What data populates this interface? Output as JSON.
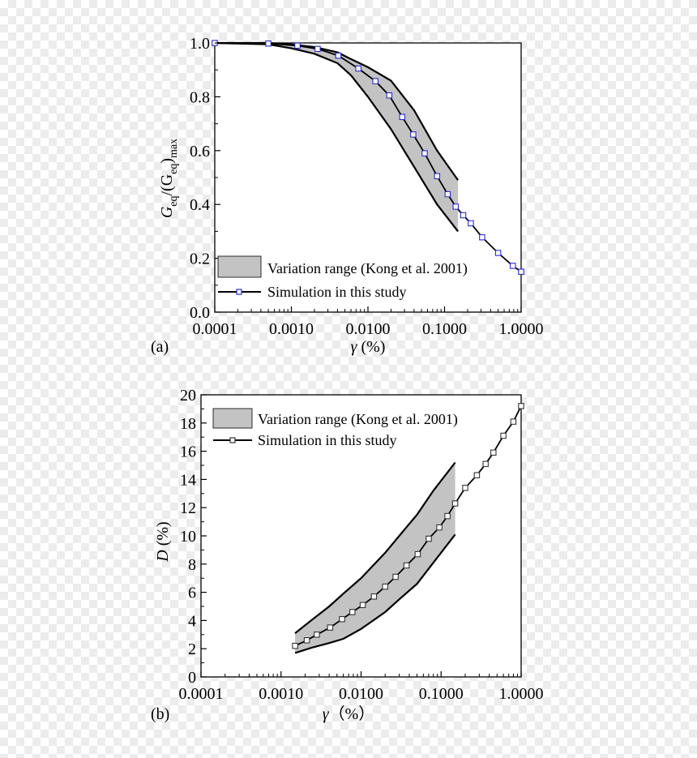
{
  "chart_data": [
    {
      "type": "line",
      "panel_label": "(a)",
      "xscale": "log",
      "xlim": [
        0.0001,
        1.0
      ],
      "ylim": [
        0.0,
        1.0
      ],
      "xticks": [
        "0.0001",
        "0.0010",
        "0.0100",
        "0.1000",
        "1.0000"
      ],
      "yticks": [
        "0.0",
        "0.2",
        "0.4",
        "0.6",
        "0.8",
        "1.0"
      ],
      "xlabel": {
        "symbol": "γ",
        "unit": " (%)"
      },
      "ylabel": {
        "parts": [
          "G",
          "eq",
          "/(G",
          "eq",
          ")",
          "max"
        ]
      },
      "legend_position": "bottom-left",
      "band": {
        "name": "Variation range (Kong et al. 2001)",
        "x": [
          0.0001,
          0.0005,
          0.001,
          0.002,
          0.004,
          0.006,
          0.01,
          0.02,
          0.04,
          0.08,
          0.15
        ],
        "upper": [
          1.0,
          1.0,
          0.995,
          0.985,
          0.965,
          0.94,
          0.91,
          0.86,
          0.75,
          0.6,
          0.49
        ],
        "lower": [
          1.0,
          0.995,
          0.98,
          0.96,
          0.925,
          0.88,
          0.8,
          0.68,
          0.54,
          0.4,
          0.3
        ]
      },
      "series": [
        {
          "name": "Simulation in this study",
          "x": [
            0.0001,
            0.0005,
            0.0012,
            0.0022,
            0.0041,
            0.0075,
            0.0125,
            0.019,
            0.028,
            0.039,
            0.055,
            0.08,
            0.11,
            0.14,
            0.175,
            0.22,
            0.31,
            0.5,
            0.78,
            1.0
          ],
          "y": [
            1.0,
            0.998,
            0.99,
            0.978,
            0.953,
            0.905,
            0.858,
            0.805,
            0.725,
            0.66,
            0.59,
            0.505,
            0.438,
            0.392,
            0.36,
            0.33,
            0.278,
            0.22,
            0.172,
            0.15
          ]
        }
      ]
    },
    {
      "type": "line",
      "panel_label": "(b)",
      "xscale": "log",
      "xlim": [
        0.0001,
        1.0
      ],
      "ylim": [
        0,
        20
      ],
      "xticks": [
        "0.0001",
        "0.0010",
        "0.0100",
        "0.1000",
        "1.0000"
      ],
      "yticks": [
        "0",
        "2",
        "4",
        "6",
        "8",
        "10",
        "12",
        "14",
        "16",
        "18",
        "20"
      ],
      "xlabel": {
        "symbol": "γ",
        "unit": "（%）"
      },
      "ylabel": {
        "symbol": "D",
        "unit": " (%)"
      },
      "legend_position": "top-left",
      "band": {
        "name": "Variation range (Kong et al. 2001)",
        "x": [
          0.0015,
          0.0025,
          0.004,
          0.006,
          0.01,
          0.02,
          0.03,
          0.05,
          0.08,
          0.15
        ],
        "upper": [
          3.1,
          4.1,
          5.0,
          5.9,
          7.0,
          8.8,
          10.0,
          11.5,
          13.2,
          15.2
        ],
        "lower": [
          1.7,
          2.1,
          2.4,
          2.7,
          3.4,
          4.6,
          5.5,
          6.6,
          8.1,
          10.1
        ]
      },
      "series": [
        {
          "name": "Simulation in this study",
          "x": [
            0.0015,
            0.0021,
            0.0028,
            0.0041,
            0.0058,
            0.0078,
            0.0105,
            0.0145,
            0.02,
            0.027,
            0.037,
            0.051,
            0.07,
            0.095,
            0.12,
            0.15,
            0.2,
            0.28,
            0.36,
            0.45,
            0.6,
            0.8,
            1.0
          ],
          "y": [
            2.2,
            2.6,
            3.0,
            3.5,
            4.1,
            4.6,
            5.1,
            5.7,
            6.4,
            7.1,
            7.9,
            8.7,
            9.8,
            10.6,
            11.4,
            12.3,
            13.4,
            14.3,
            15.1,
            15.9,
            17.1,
            18.1,
            19.2
          ]
        }
      ]
    }
  ],
  "style": {
    "band_fill": "#c3c3c3",
    "line_color": "#000000",
    "marker_a": "#2b2bd0",
    "marker_b": "#333333",
    "plot_bg": "#ffffff"
  }
}
